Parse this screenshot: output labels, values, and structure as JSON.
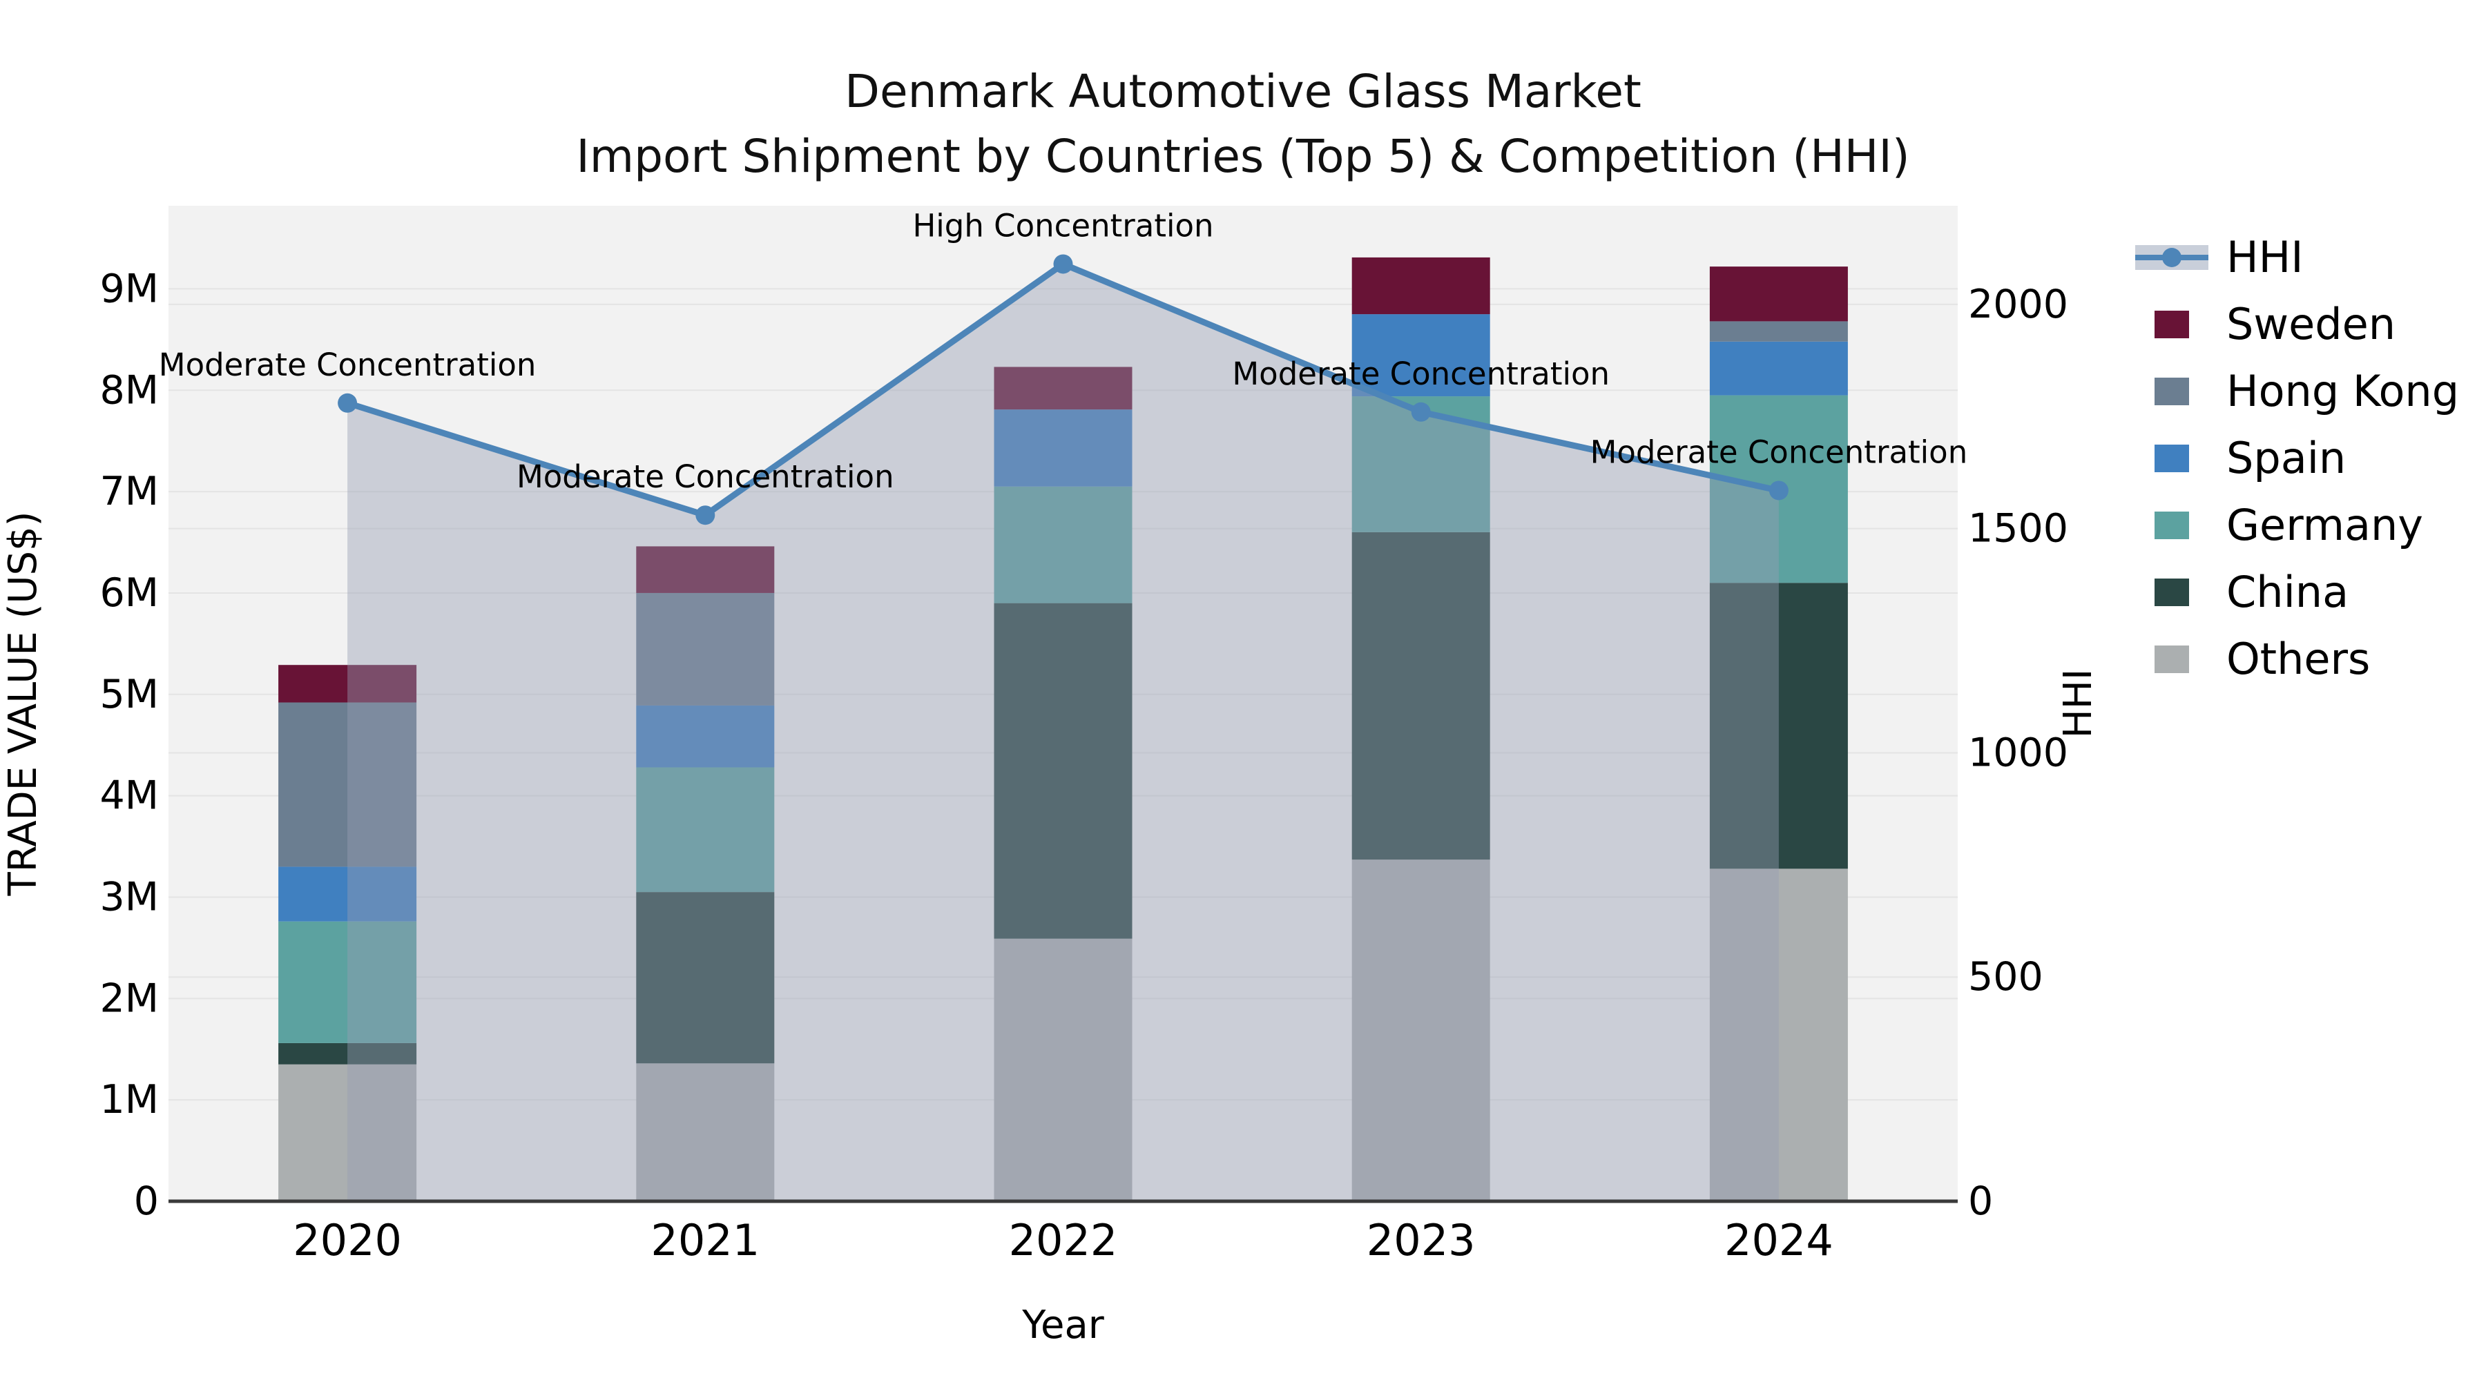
{
  "title": {
    "line1": "Denmark Automotive Glass Market",
    "line2": "Import Shipment by Countries (Top 5) & Competition (HHI)"
  },
  "chart_data": {
    "type": "combo-stacked-bar-line",
    "categories": [
      "2020",
      "2021",
      "2022",
      "2023",
      "2024"
    ],
    "bar_series": [
      {
        "name": "Others",
        "color": "#abafb0",
        "values": [
          1350000,
          1360000,
          2590000,
          3370000,
          3280000
        ]
      },
      {
        "name": "China",
        "color": "#2a4744",
        "values": [
          210000,
          1690000,
          3310000,
          3230000,
          2820000
        ]
      },
      {
        "name": "Germany",
        "color": "#5ca2a0",
        "values": [
          1200000,
          1230000,
          1150000,
          1340000,
          1850000
        ]
      },
      {
        "name": "Spain",
        "color": "#4080c0",
        "values": [
          540000,
          610000,
          760000,
          810000,
          530000
        ]
      },
      {
        "name": "Hong Kong",
        "color": "#6b7e91",
        "values": [
          1620000,
          1110000,
          0,
          0,
          200000
        ]
      },
      {
        "name": "Sweden",
        "color": "#681336",
        "values": [
          370000,
          460000,
          420000,
          560000,
          540000
        ]
      }
    ],
    "line_series": {
      "name": "HHI",
      "axis": "right",
      "color": "#4d85b8",
      "area_fill": "rgba(150,158,178,0.42)",
      "values": [
        1780,
        1530,
        2090,
        1760,
        1585
      ]
    },
    "annotations": [
      {
        "category": "2020",
        "label": "Moderate Concentration"
      },
      {
        "category": "2021",
        "label": "Moderate Concentration"
      },
      {
        "category": "2022",
        "label": "High Concentration"
      },
      {
        "category": "2023",
        "label": "Moderate Concentration"
      },
      {
        "category": "2024",
        "label": "Moderate Concentration"
      }
    ],
    "left_axis": {
      "label": "TRADE VALUE (US$)",
      "max": 9820000,
      "ticks": [
        {
          "value": 0,
          "label": "0"
        },
        {
          "value": 1000000,
          "label": "1M"
        },
        {
          "value": 2000000,
          "label": "2M"
        },
        {
          "value": 3000000,
          "label": "3M"
        },
        {
          "value": 4000000,
          "label": "4M"
        },
        {
          "value": 5000000,
          "label": "5M"
        },
        {
          "value": 6000000,
          "label": "6M"
        },
        {
          "value": 7000000,
          "label": "7M"
        },
        {
          "value": 8000000,
          "label": "8M"
        },
        {
          "value": 9000000,
          "label": "9M"
        }
      ]
    },
    "right_axis": {
      "label": "HHI",
      "max": 2220,
      "ticks": [
        {
          "value": 0,
          "label": "0"
        },
        {
          "value": 500,
          "label": "500"
        },
        {
          "value": 1000,
          "label": "1000"
        },
        {
          "value": 1500,
          "label": "1500"
        },
        {
          "value": 2000,
          "label": "2000"
        }
      ]
    },
    "x_axis": {
      "label": "Year"
    },
    "style": {
      "plot_bg": "#f2f2f2",
      "grid": "#e4e4e4",
      "spine": "#3a3a3a",
      "text": "#000000",
      "legend_band": "#c9cfda"
    },
    "legend_order": [
      "HHI",
      "Sweden",
      "Hong Kong",
      "Spain",
      "Germany",
      "China",
      "Others"
    ]
  }
}
